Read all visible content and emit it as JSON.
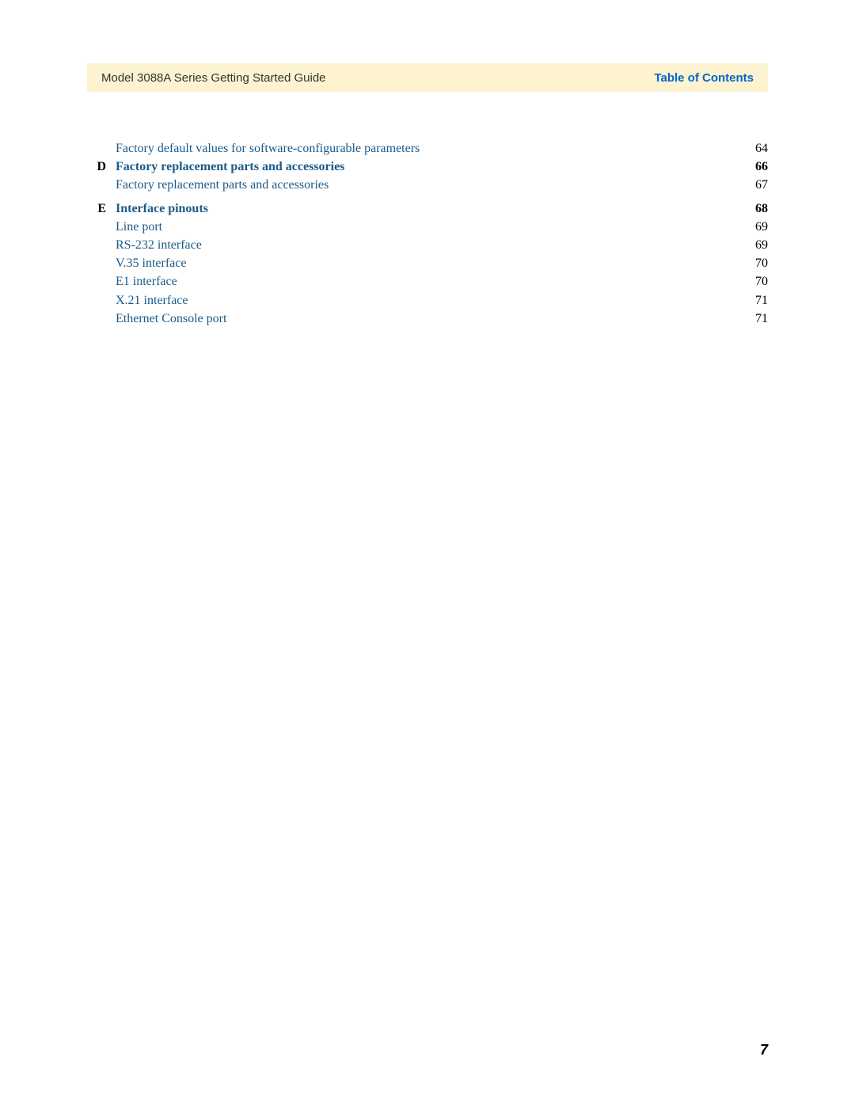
{
  "header": {
    "left": "Model 3088A Series Getting Started Guide",
    "right": "Table of Contents"
  },
  "toc": [
    {
      "letter": "",
      "label": "Factory default values for software-configurable parameters",
      "page": "64",
      "bold": false
    },
    {
      "letter": "D",
      "label": "Factory replacement parts and accessories ",
      "page": "66",
      "bold": true
    },
    {
      "letter": "",
      "label": "Factory replacement parts and accessories ",
      "page": "67",
      "bold": false
    },
    {
      "gap": true
    },
    {
      "letter": "E",
      "label": "Interface pinouts ",
      "page": "68",
      "bold": true
    },
    {
      "letter": "",
      "label": "Line port ",
      "page": "69",
      "bold": false
    },
    {
      "letter": "",
      "label": "RS-232 interface",
      "page": "69",
      "bold": false
    },
    {
      "letter": "",
      "label": "V.35 interface",
      "page": "70",
      "bold": false
    },
    {
      "letter": "",
      "label": "E1 interface ",
      "page": "70",
      "bold": false
    },
    {
      "letter": "",
      "label": "X.21 interface",
      "page": "71",
      "bold": false
    },
    {
      "letter": "",
      "label": "Ethernet Console port ",
      "page": "71",
      "bold": false
    }
  ],
  "footer": {
    "page_number": "7"
  },
  "colors": {
    "header_bg": "#fdf3d0",
    "header_right_color": "#0066cc",
    "link_color": "#1a5a8a",
    "page_bg": "#ffffff"
  }
}
